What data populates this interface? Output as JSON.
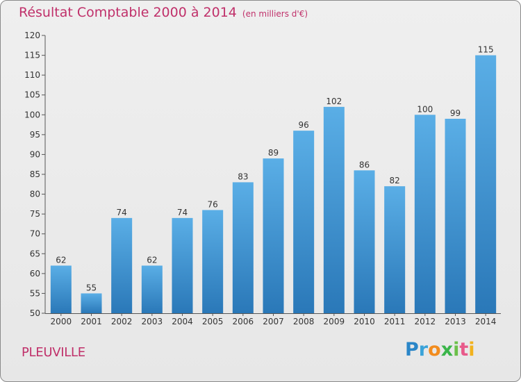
{
  "header": {
    "title": "Résultat Comptable 2000 à 2014",
    "subtitle": "(en milliers d'€)"
  },
  "footer": {
    "location": "PLEUVILLE",
    "logo_text": "Proxiti"
  },
  "colors": {
    "bar_top": "#5aaee6",
    "bar_bottom": "#2a78b8",
    "title": "#c0306a"
  },
  "chart_data": {
    "type": "bar",
    "title": "Résultat Comptable 2000 à 2014",
    "subtitle": "(en milliers d'€)",
    "xlabel": "",
    "ylabel": "",
    "categories": [
      "2000",
      "2001",
      "2002",
      "2003",
      "2004",
      "2005",
      "2006",
      "2007",
      "2008",
      "2009",
      "2010",
      "2011",
      "2012",
      "2013",
      "2014"
    ],
    "values": [
      62,
      55,
      74,
      62,
      74,
      76,
      83,
      89,
      96,
      102,
      86,
      82,
      100,
      99,
      115
    ],
    "ylim": [
      50,
      120
    ],
    "yticks": [
      50,
      55,
      60,
      65,
      70,
      75,
      80,
      85,
      90,
      95,
      100,
      105,
      110,
      115,
      120
    ],
    "grid": false,
    "legend": "none"
  }
}
